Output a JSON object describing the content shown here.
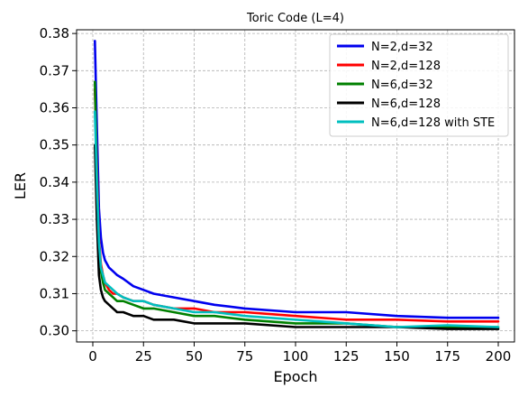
{
  "chart_data": {
    "type": "line",
    "title": "Toric Code (L=4)",
    "xlabel": "Epoch",
    "ylabel": "LER",
    "xlim": [
      -8,
      208
    ],
    "ylim": [
      0.297,
      0.381
    ],
    "x_ticks": [
      0,
      25,
      50,
      75,
      100,
      125,
      150,
      175,
      200
    ],
    "y_ticks": [
      0.3,
      0.31,
      0.32,
      0.33,
      0.34,
      0.35,
      0.36,
      0.37,
      0.38
    ],
    "grid": true,
    "legend_position": "top-right",
    "series": [
      {
        "name": "N=2,d=32",
        "color": "#0000ee",
        "x": [
          1,
          2,
          3,
          4,
          5,
          6,
          8,
          10,
          12,
          15,
          20,
          25,
          30,
          40,
          50,
          60,
          75,
          100,
          125,
          150,
          175,
          200
        ],
        "y": [
          0.378,
          0.355,
          0.333,
          0.325,
          0.321,
          0.319,
          0.317,
          0.316,
          0.315,
          0.314,
          0.312,
          0.311,
          0.31,
          0.309,
          0.308,
          0.307,
          0.306,
          0.305,
          0.305,
          0.304,
          0.3035,
          0.3035
        ]
      },
      {
        "name": "N=2,d=128",
        "color": "#ff0000",
        "x": [
          1,
          2,
          3,
          4,
          5,
          6,
          8,
          10,
          12,
          15,
          20,
          25,
          30,
          40,
          50,
          60,
          75,
          100,
          125,
          150,
          175,
          200
        ],
        "y": [
          0.365,
          0.345,
          0.325,
          0.318,
          0.315,
          0.313,
          0.311,
          0.31,
          0.31,
          0.309,
          0.308,
          0.308,
          0.307,
          0.306,
          0.306,
          0.305,
          0.305,
          0.304,
          0.303,
          0.303,
          0.3025,
          0.3025
        ]
      },
      {
        "name": "N=6,d=32",
        "color": "#008000",
        "x": [
          1,
          2,
          3,
          4,
          5,
          6,
          8,
          10,
          12,
          15,
          20,
          25,
          30,
          40,
          50,
          60,
          75,
          100,
          125,
          150,
          175,
          200
        ],
        "y": [
          0.367,
          0.342,
          0.322,
          0.316,
          0.313,
          0.311,
          0.31,
          0.309,
          0.308,
          0.308,
          0.307,
          0.306,
          0.306,
          0.305,
          0.304,
          0.304,
          0.303,
          0.302,
          0.302,
          0.301,
          0.301,
          0.301
        ]
      },
      {
        "name": "N=6,d=128",
        "color": "#000000",
        "x": [
          1,
          2,
          3,
          4,
          5,
          6,
          8,
          10,
          12,
          15,
          20,
          25,
          30,
          40,
          50,
          60,
          75,
          100,
          125,
          150,
          175,
          200
        ],
        "y": [
          0.35,
          0.33,
          0.315,
          0.311,
          0.309,
          0.308,
          0.307,
          0.306,
          0.305,
          0.305,
          0.304,
          0.304,
          0.303,
          0.303,
          0.302,
          0.302,
          0.302,
          0.301,
          0.301,
          0.301,
          0.3005,
          0.3005
        ]
      },
      {
        "name": "N=6,d=128 with STE",
        "color": "#00bfbf",
        "x": [
          1,
          2,
          3,
          4,
          5,
          6,
          8,
          10,
          12,
          15,
          20,
          25,
          30,
          40,
          50,
          60,
          75,
          100,
          125,
          150,
          175,
          200
        ],
        "y": [
          0.359,
          0.34,
          0.324,
          0.317,
          0.315,
          0.313,
          0.312,
          0.311,
          0.31,
          0.309,
          0.308,
          0.308,
          0.307,
          0.306,
          0.305,
          0.305,
          0.304,
          0.303,
          0.302,
          0.301,
          0.3015,
          0.301
        ]
      }
    ]
  }
}
